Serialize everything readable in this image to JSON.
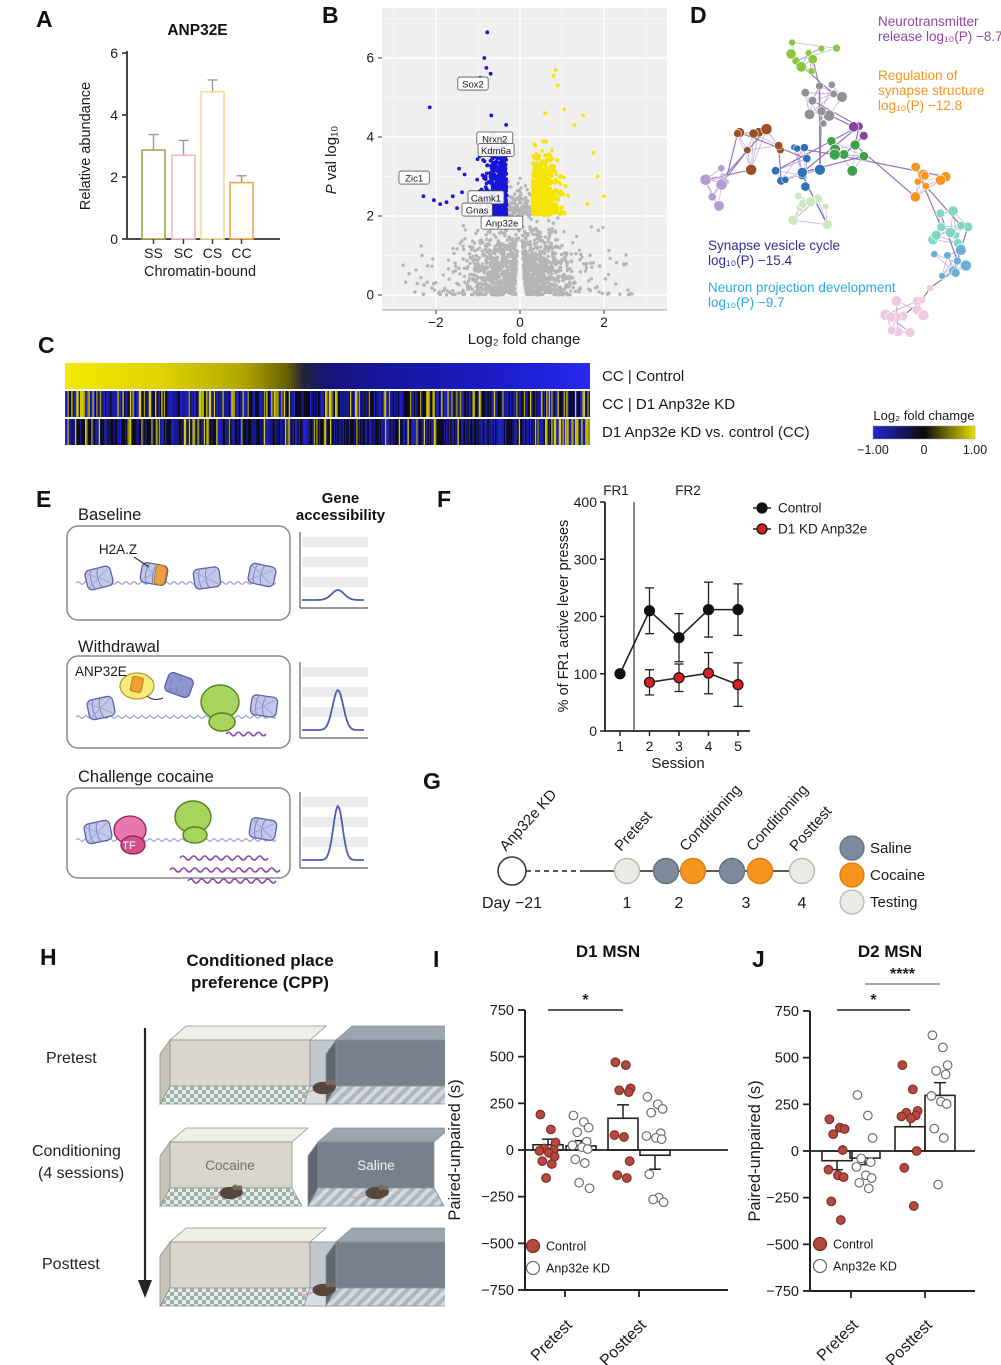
{
  "panels": {
    "A": {
      "label": "A",
      "chart_data": {
        "type": "bar",
        "title": "ANP32E",
        "xlabel": "Chromatin-bound",
        "ylabel": "Relative abundance",
        "ylim": [
          0,
          6
        ],
        "yticks": [
          0,
          2,
          4,
          6
        ],
        "categories": [
          "SS",
          "SC",
          "CS",
          "CC"
        ],
        "values": [
          2.87,
          2.7,
          4.75,
          1.82
        ],
        "errors": [
          0.5,
          0.48,
          0.38,
          0.22
        ],
        "bar_colors": [
          "#a6a04a",
          "#f2b9c4",
          "#f3de9c",
          "#f2a549"
        ],
        "bar_fill": "#ffffff"
      }
    },
    "B": {
      "label": "B",
      "chart_data": {
        "type": "scatter",
        "subtype": "volcano",
        "xlabel": "Log₂ fold change",
        "ylabel": "P val log₁₀",
        "xlim": [
          -3.3,
          3.5
        ],
        "ylim": [
          -0.35,
          7.25
        ],
        "xticks": [
          -2,
          0,
          2
        ],
        "yticks": [
          0,
          2,
          4,
          6
        ],
        "background": "#efefef",
        "significance_threshold_y": 2,
        "colors": {
          "down": "#1717d6",
          "up": "#f5e400",
          "ns": "#b5b5b5"
        },
        "clusters": [
          {
            "name": "downregulated",
            "color": "#1717d6",
            "x_range": [
              -2.4,
              -0.3
            ],
            "y_range": [
              2,
              6.7
            ],
            "n": 520
          },
          {
            "name": "upregulated",
            "color": "#f5e400",
            "x_range": [
              0.3,
              1.9
            ],
            "y_range": [
              2,
              5.7
            ],
            "n": 620
          },
          {
            "name": "nonsignificant",
            "color": "#b5b5b5",
            "x_range": [
              -2.7,
              2.7
            ],
            "y_range": [
              0,
              2.6
            ],
            "n": 1400
          }
        ],
        "gene_labels": [
          {
            "gene": "Sox2",
            "x": -1.12,
            "y": 5.34
          },
          {
            "gene": "Nrxn2",
            "x": -0.6,
            "y": 3.95
          },
          {
            "gene": "Kdm6a",
            "x": -0.57,
            "y": 3.66
          },
          {
            "gene": "Zic1",
            "x": -2.52,
            "y": 2.96
          },
          {
            "gene": "Camk1",
            "x": -0.81,
            "y": 2.46
          },
          {
            "gene": "Gnas",
            "x": -1.02,
            "y": 2.15
          },
          {
            "gene": "Anp32e",
            "x": -0.43,
            "y": 1.82
          }
        ]
      }
    },
    "C": {
      "label": "C",
      "chart_data": {
        "type": "heatmap",
        "rows": [
          "CC | Control",
          "CC | D1 Anp32e KD",
          "D1 Anp32e KD vs. control (CC)"
        ],
        "colorbar": {
          "title": "Log₂ fold chamge",
          "ticks": [
            "−1.00",
            "0",
            "1.00"
          ],
          "min_color": "#2626d8",
          "mid_color": "#0a0a0a",
          "max_color": "#e8df00"
        },
        "row1_gradient": [
          {
            "pos": 0,
            "color": "#f2ea00"
          },
          {
            "pos": 0.18,
            "color": "#e0d400"
          },
          {
            "pos": 0.34,
            "color": "#b0a600"
          },
          {
            "pos": 0.42,
            "color": "#6c6400"
          },
          {
            "pos": 0.455,
            "color": "#23233c"
          },
          {
            "pos": 0.5,
            "color": "#14147a"
          },
          {
            "pos": 0.62,
            "color": "#1616a0"
          },
          {
            "pos": 0.8,
            "color": "#1b1bc4"
          },
          {
            "pos": 0.93,
            "color": "#2222e0"
          },
          {
            "pos": 1,
            "color": "#2a2af0"
          }
        ],
        "stripe_palette": {
          "yellow": "#d6ce00",
          "yellow2": "#a8a000",
          "blue": "#2121c8",
          "blue2": "#18188f",
          "dark": "#0c0c1e"
        }
      }
    },
    "D": {
      "label": "D",
      "chart_data": {
        "type": "network",
        "edge_color": "#bda6da",
        "edge_color_strong": "#8a68b0",
        "cluster_colors": [
          "#8cc63f",
          "#8f9194",
          "#9c4f24",
          "#b49bd6",
          "#2d72b5",
          "#3fa14a",
          "#8246a0",
          "#cfe8c4",
          "#f7941d",
          "#82d6c3",
          "#6baed6",
          "#efc9e0"
        ],
        "annotations": [
          {
            "lines": [
              "Neurotransmitter",
              "release log₁₀(P) −8.7"
            ],
            "color": "#9146a1"
          },
          {
            "lines": [
              "Regulation of",
              "synapse structure",
              "log₁₀(P) −12.8"
            ],
            "color": "#f7941d"
          },
          {
            "lines": [
              "Synapse vesicle cycle",
              "log₁₀(P) −15.4"
            ],
            "color": "#2e3192"
          },
          {
            "lines": [
              "Neuron projection development",
              "log₁₀(P) −9.7"
            ],
            "color": "#29abe2"
          }
        ]
      }
    },
    "E": {
      "label": "E",
      "content": {
        "right_header_line1": "Gene",
        "right_header_line2": "accessibility",
        "stages": [
          {
            "title": "Baseline",
            "molecule_label": "H2A.Z",
            "peak": 10
          },
          {
            "title": "Withdrawal",
            "molecule_label": "ANP32E",
            "peak": 40
          },
          {
            "title": "Challenge cocaine",
            "molecule_label": "TF",
            "peak": 54
          }
        ],
        "curve_color": "#4a5fae"
      }
    },
    "F": {
      "label": "F",
      "chart_data": {
        "type": "line",
        "xlabel": "Session",
        "ylabel": "% of FR1 active lever presses",
        "ylim": [
          0,
          400
        ],
        "yticks": [
          0,
          100,
          200,
          300,
          400
        ],
        "xticks": [
          1,
          2,
          3,
          4,
          5
        ],
        "phase_left": "FR1",
        "phase_right": "FR2",
        "divider_x": 1.5,
        "series": [
          {
            "name": "Control",
            "color": "#111111",
            "x": [
              1,
              2,
              3,
              4,
              5
            ],
            "values": [
              100,
              210,
              163,
              212,
              212
            ],
            "errors": [
              0,
              40,
              42,
              48,
              45
            ]
          },
          {
            "name": "D1 KD Anp32e",
            "color": "#d42020",
            "x": [
              2,
              3,
              4,
              5
            ],
            "values": [
              85,
              93,
              101,
              81
            ],
            "errors": [
              22,
              24,
              36,
              38
            ]
          }
        ]
      }
    },
    "G": {
      "label": "G",
      "chart_data": {
        "type": "timeline",
        "start": {
          "label": "Anp32e KD",
          "day": "Day −21"
        },
        "events": [
          {
            "label": "Pretest",
            "day": "1",
            "types": [
              "testing"
            ]
          },
          {
            "label": "Conditioning",
            "day": "2",
            "types": [
              "saline",
              "cocaine"
            ]
          },
          {
            "label": "Conditioning",
            "day": "3",
            "types": [
              "saline",
              "cocaine"
            ]
          },
          {
            "label": "Posttest",
            "day": "4",
            "types": [
              "testing"
            ]
          }
        ],
        "legend": [
          {
            "label": "Saline",
            "color": "#7d8c9b",
            "stroke": "#66737f"
          },
          {
            "label": "Cocaine",
            "color": "#f7941d",
            "stroke": "#da7f0e"
          },
          {
            "label": "Testing",
            "color": "#eceae6",
            "stroke": "#bcb9b2"
          }
        ]
      }
    },
    "H": {
      "label": "H",
      "content": {
        "title_line1": "Conditioned place",
        "title_line2": "preference (CPP)",
        "stage_pretest": "Pretest",
        "stage_conditioning_1": "Conditioning",
        "stage_conditioning_2": "(4 sessions)",
        "stage_posttest": "Posttest",
        "chamber_cocaine": "Cocaine",
        "chamber_saline": "Saline"
      }
    },
    "I": {
      "label": "I",
      "chart_data": {
        "type": "scatter-bar",
        "title": "D1 MSN",
        "ylabel": "Paired-unpaired (s)",
        "ylim": [
          -750,
          750
        ],
        "yticks": [
          750,
          500,
          250,
          0,
          -250,
          -500,
          -750
        ],
        "categories": [
          "Pretest",
          "Posttest"
        ],
        "legend": [
          {
            "label": "Control",
            "fill": "#b5483f",
            "stroke": "#7e2f28"
          },
          {
            "label": "Anp32e KD",
            "fill": "#ffffff",
            "stroke": "#6e6e6e"
          }
        ],
        "significance": [
          {
            "label": "*",
            "col_from": 0,
            "col_to": 2,
            "level": 1,
            "color": "#222222"
          }
        ],
        "groups": [
          {
            "name": "pretest-control",
            "series": "Control",
            "mean": 28,
            "sem": 30,
            "points": [
              190,
              110,
              40,
              8,
              0,
              -5,
              -15,
              -35,
              -60,
              -75,
              -150
            ]
          },
          {
            "name": "pretest-kd",
            "series": "Anp32e KD",
            "mean": 22,
            "sem": 28,
            "points": [
              185,
              150,
              120,
              95,
              45,
              25,
              15,
              5,
              -50,
              -70,
              -175,
              -205
            ]
          },
          {
            "name": "posttest-control",
            "series": "Control",
            "mean": 170,
            "sem": 72,
            "points": [
              470,
              455,
              330,
              320,
              310,
              80,
              70,
              -60,
              -135,
              -150
            ]
          },
          {
            "name": "posttest-kd",
            "series": "Anp32e KD",
            "mean": -28,
            "sem": 75,
            "points": [
              285,
              245,
              220,
              200,
              90,
              75,
              65,
              58,
              -130,
              -255,
              -265,
              -280
            ]
          }
        ]
      }
    },
    "J": {
      "label": "J",
      "chart_data": {
        "type": "scatter-bar",
        "title": "D2 MSN",
        "ylabel": "Paired-unpaired (s)",
        "ylim": [
          -750,
          750
        ],
        "yticks": [
          750,
          500,
          250,
          0,
          -250,
          -500,
          -750
        ],
        "categories": [
          "Pretest",
          "Posttest"
        ],
        "legend": [
          {
            "label": "Control",
            "fill": "#b5483f",
            "stroke": "#7e2f28"
          },
          {
            "label": "Anp32e KD",
            "fill": "#ffffff",
            "stroke": "#6e6e6e"
          }
        ],
        "significance": [
          {
            "label": "*",
            "col_from": 0,
            "col_to": 2,
            "level": 1,
            "color": "#222222"
          },
          {
            "label": "****",
            "col_from": 1,
            "col_to": 3,
            "level": 2,
            "color": "#8a8a8a"
          }
        ],
        "groups": [
          {
            "name": "pretest-control",
            "series": "Control",
            "mean": -52,
            "sem": 48,
            "points": [
              170,
              125,
              118,
              90,
              5,
              -100,
              -130,
              -140,
              -270,
              -370
            ]
          },
          {
            "name": "pretest-kd",
            "series": "Anp32e KD",
            "mean": -38,
            "sem": 35,
            "points": [
              300,
              190,
              70,
              -40,
              -60,
              -85,
              -130,
              -145,
              -170,
              -200
            ]
          },
          {
            "name": "posttest-control",
            "series": "Control",
            "mean": 130,
            "sem": 58,
            "points": [
              460,
              330,
              215,
              205,
              190,
              185,
              175,
              0,
              -90,
              -295
            ]
          },
          {
            "name": "posttest-kd",
            "series": "Anp32e KD",
            "mean": 298,
            "sem": 68,
            "points": [
              620,
              555,
              460,
              430,
              410,
              295,
              265,
              252,
              120,
              70,
              -180
            ]
          }
        ]
      }
    }
  }
}
